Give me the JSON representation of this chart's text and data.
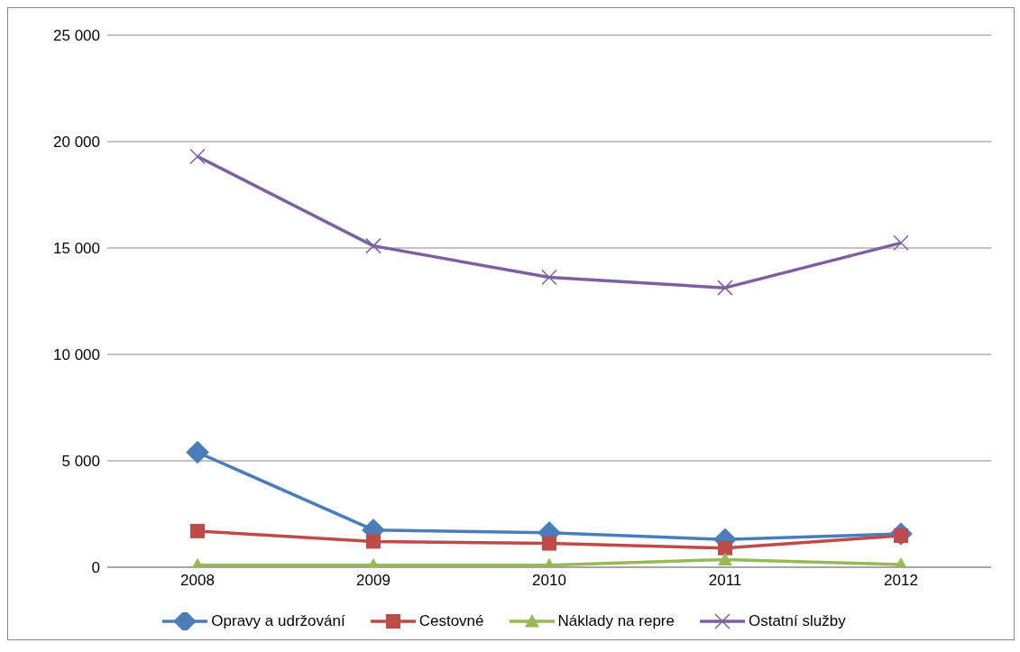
{
  "chart_data": {
    "type": "line",
    "categories": [
      "2008",
      "2009",
      "2010",
      "2011",
      "2012"
    ],
    "series": [
      {
        "name": "Opravy a udržování",
        "color": "#4a7ebb",
        "marker": "diamond",
        "values": [
          5400,
          1750,
          1620,
          1300,
          1570
        ]
      },
      {
        "name": "Cestovné",
        "color": "#be4b48",
        "marker": "square",
        "values": [
          1700,
          1210,
          1120,
          900,
          1480
        ]
      },
      {
        "name": "Náklady na repre",
        "color": "#98b954",
        "marker": "triangle",
        "values": [
          100,
          100,
          100,
          360,
          130
        ]
      },
      {
        "name": "Ostatní služby",
        "color": "#7d60a0",
        "marker": "cross",
        "values": [
          19300,
          15100,
          13620,
          13130,
          15240
        ]
      }
    ],
    "ylim": [
      0,
      25000
    ],
    "yticks": [
      {
        "value": 0,
        "label": "0"
      },
      {
        "value": 5000,
        "label": "5 000"
      },
      {
        "value": 10000,
        "label": "10 000"
      },
      {
        "value": 15000,
        "label": "15 000"
      },
      {
        "value": 20000,
        "label": "20 000"
      },
      {
        "value": 25000,
        "label": "25 000"
      }
    ],
    "grid": "y",
    "legend": "bottom",
    "line_style": "solid"
  }
}
